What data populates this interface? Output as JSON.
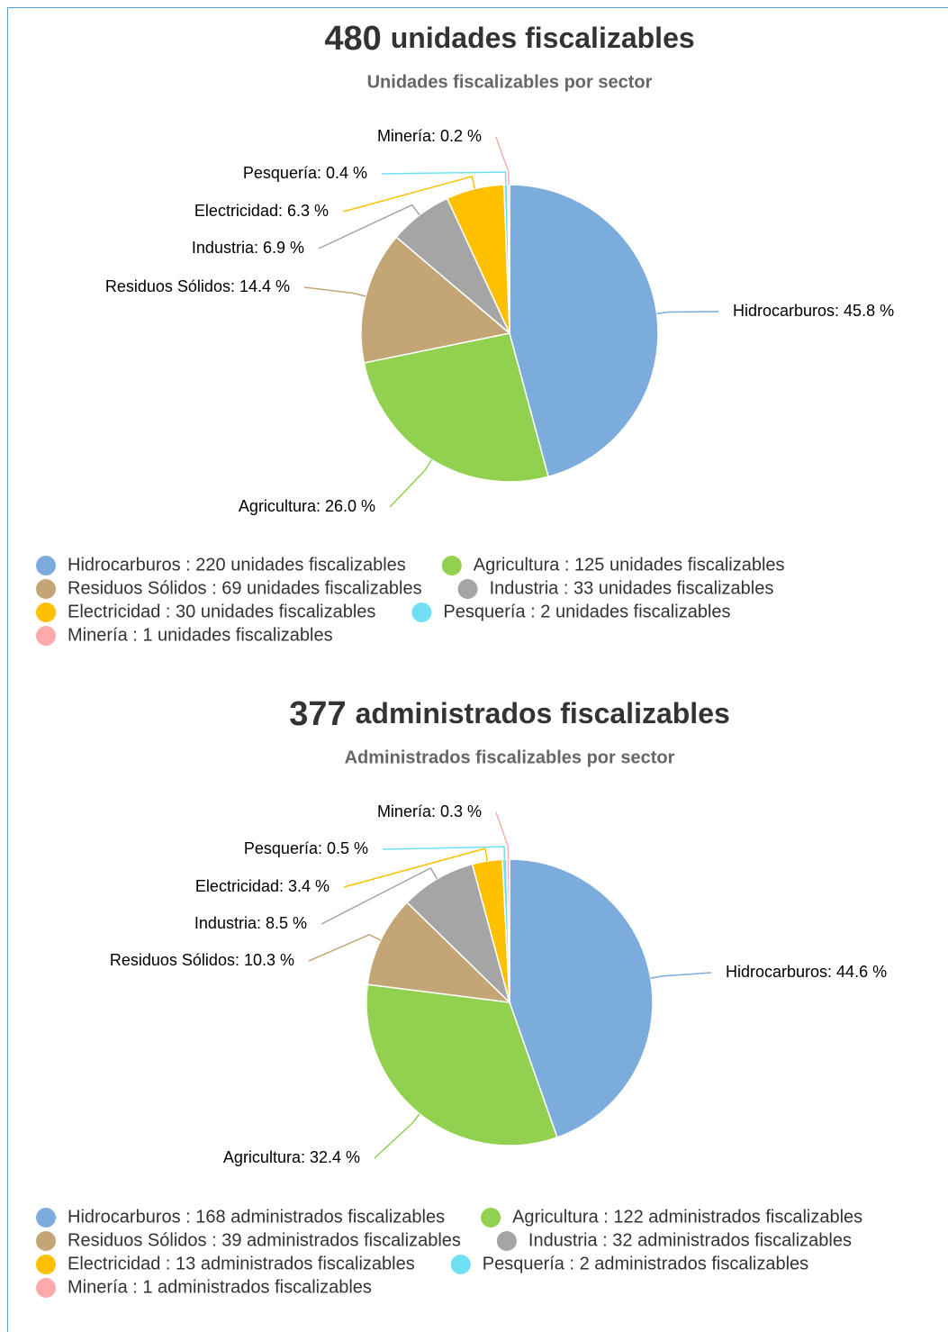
{
  "chart_data": [
    {
      "type": "pie",
      "title": {
        "number": 480,
        "text": "unidades fiscalizables"
      },
      "subtitle": "Unidades fiscalizables por sector",
      "categories": [
        "Hidrocarburos : 220 unidades fiscalizables",
        "Agricultura : 125 unidades fiscalizables",
        "Residuos Sólidos : 69 unidades fiscalizables",
        "Industria : 33 unidades fiscalizables",
        "Electricidad : 30 unidades fiscalizables",
        "Pesquería : 2 unidades fiscalizables",
        "Minería : 1 unidades fiscalizables"
      ],
      "values": [
        45.8,
        26.0,
        14.4,
        6.9,
        6.3,
        0.4,
        0.2
      ],
      "value_labels": [
        "Hidrocarburos: 45.8 %",
        "Agricultura: 26.0 %",
        "Residuos Sólidos: 14.4 %",
        "Industria: 6.9 %",
        "Electricidad: 6.3 %",
        "Pesquería: 0.4 %",
        "Minería: 0.2 %"
      ],
      "colors": [
        "#7cacdc",
        "#92d050",
        "#c4a676",
        "#a5a5a5",
        "#ffc000",
        "#6fe0f4",
        "#ffaaaa"
      ]
    },
    {
      "type": "pie",
      "title": {
        "number": 377,
        "text": "administrados fiscalizables"
      },
      "subtitle": "Administrados fiscalizables por sector",
      "categories": [
        "Hidrocarburos : 168 administrados fiscalizables",
        "Agricultura : 122 administrados fiscalizables",
        "Residuos Sólidos : 39 administrados fiscalizables",
        "Industria : 32 administrados fiscalizables",
        "Electricidad : 13 administrados fiscalizables",
        "Pesquería : 2 administrados fiscalizables",
        "Minería : 1 administrados fiscalizables"
      ],
      "values": [
        44.6,
        32.4,
        10.3,
        8.5,
        3.4,
        0.5,
        0.3
      ],
      "value_labels": [
        "Hidrocarburos: 44.6 %",
        "Agricultura: 32.4 %",
        "Residuos Sólidos: 10.3 %",
        "Industria: 8.5 %",
        "Electricidad: 3.4 %",
        "Pesquería: 0.5 %",
        "Minería: 0.3 %"
      ],
      "colors": [
        "#7cacdc",
        "#92d050",
        "#c4a676",
        "#a5a5a5",
        "#ffc000",
        "#6fe0f4",
        "#ffaaaa"
      ]
    }
  ]
}
